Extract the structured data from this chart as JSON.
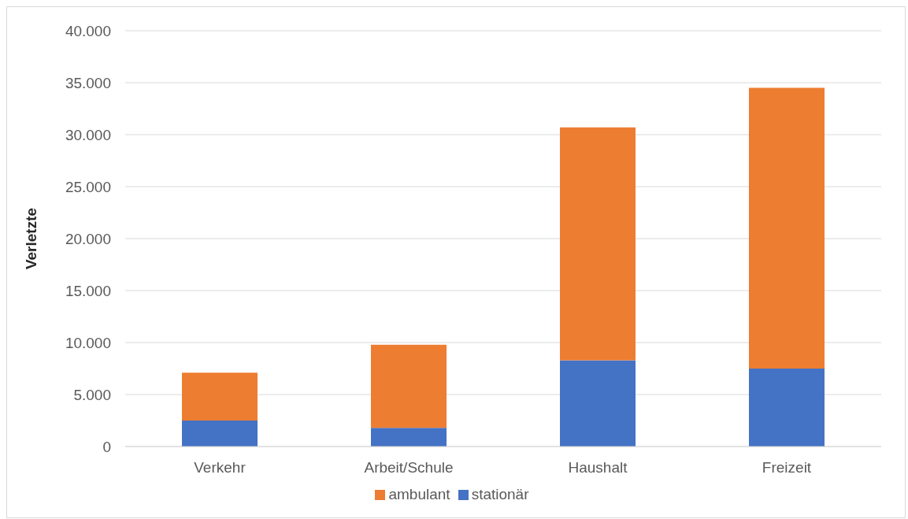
{
  "chart_data": {
    "type": "bar",
    "stacked": true,
    "ylabel": "Verletzte",
    "categories": [
      "Verkehr",
      "Arbeit/Schule",
      "Haushalt",
      "Freizeit"
    ],
    "series": [
      {
        "name": "stationär",
        "color": "#4472c4",
        "values": [
          2500,
          1800,
          8300,
          7500
        ]
      },
      {
        "name": "ambulant",
        "color": "#ed7d31",
        "values": [
          4600,
          8000,
          22400,
          27000
        ]
      }
    ],
    "ylim": [
      0,
      40000
    ],
    "yticks": [
      0,
      {
        "value": 5000,
        "label": "5.000"
      },
      {
        "value": 10000,
        "label": "10.000"
      },
      {
        "value": 15000,
        "label": "15.000"
      },
      {
        "value": 20000,
        "label": "20.000"
      },
      {
        "value": 25000,
        "label": "25.000"
      },
      {
        "value": 30000,
        "label": "30.000"
      },
      {
        "value": 35000,
        "label": "35.000"
      },
      {
        "value": 40000,
        "label": "40.000"
      }
    ],
    "grid": "y",
    "legend": "bottom"
  }
}
